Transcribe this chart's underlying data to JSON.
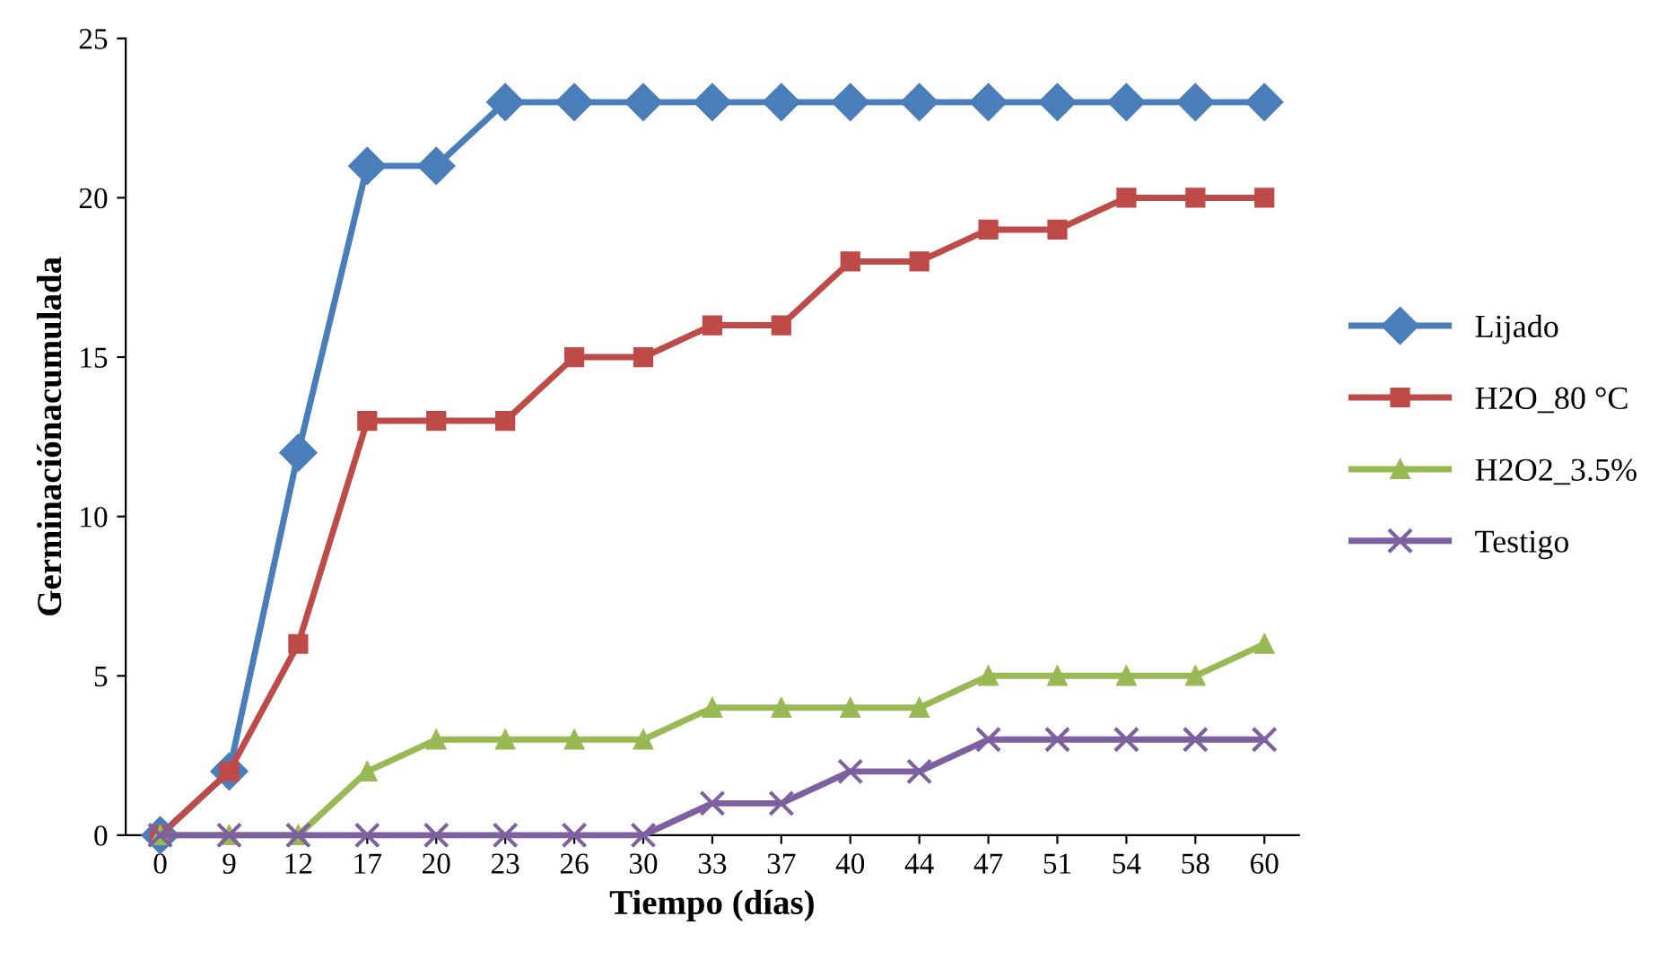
{
  "chart_data": {
    "type": "line",
    "xlabel": "Tiempo (días)",
    "ylabel": "Germinaciónacumulada",
    "categories": [
      "0",
      "9",
      "12",
      "17",
      "20",
      "23",
      "26",
      "30",
      "33",
      "37",
      "40",
      "44",
      "47",
      "51",
      "54",
      "58",
      "60"
    ],
    "series": [
      {
        "name": "Lijado",
        "color": "#4a7ebb",
        "marker": "diamond",
        "values": [
          0,
          2,
          12,
          21,
          21,
          23,
          23,
          23,
          23,
          23,
          23,
          23,
          23,
          23,
          23,
          23,
          23
        ]
      },
      {
        "name": "H2O_80 °C",
        "color": "#be4b48",
        "marker": "square",
        "values": [
          0,
          2,
          6,
          13,
          13,
          13,
          15,
          15,
          16,
          16,
          18,
          18,
          19,
          19,
          20,
          20,
          20
        ]
      },
      {
        "name": "H2O2_3.5%",
        "color": "#98b954",
        "marker": "triangle",
        "values": [
          0,
          0,
          0,
          2,
          3,
          3,
          3,
          3,
          4,
          4,
          4,
          4,
          5,
          5,
          5,
          5,
          6
        ]
      },
      {
        "name": "Testigo",
        "color": "#7d60a0",
        "marker": "cross",
        "values": [
          0,
          0,
          0,
          0,
          0,
          0,
          0,
          0,
          1,
          1,
          2,
          2,
          3,
          3,
          3,
          3,
          3
        ]
      }
    ],
    "ylim": [
      0,
      25
    ],
    "yticks": [
      0,
      5,
      10,
      15,
      20,
      25
    ],
    "grid": false,
    "legend": "right",
    "line_style": "solid"
  }
}
